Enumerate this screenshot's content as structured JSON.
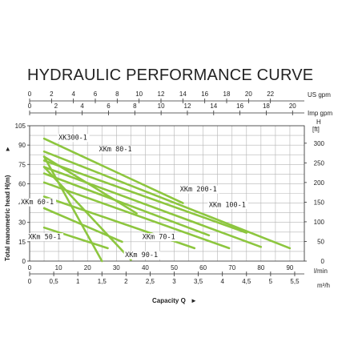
{
  "chart_data": {
    "type": "line",
    "title": "HYDRAULIC PERFORMANCE CURVE",
    "xlabel": "Capacity Q",
    "xlabel_arrow": "►",
    "ylabel": "Total manometric head H(m)",
    "ylabel_arrow": "►",
    "units": {
      "lpm": "l/min",
      "m3h": "m³/h",
      "usgpm": "US gpm",
      "impgpm": "Imp gpm",
      "ft_h": "H",
      "ft": "[ft]"
    },
    "x_lpm": {
      "range": [
        0,
        95
      ],
      "ticks": [
        "0",
        "10",
        "20",
        "30",
        "40",
        "50",
        "60",
        "70",
        "80",
        "90"
      ]
    },
    "x_m3h": {
      "ticks": [
        "0",
        "0,5",
        "1",
        "1,5",
        "2",
        "2,5",
        "3",
        "3,5",
        "4",
        "4,5",
        "5",
        "5,5"
      ]
    },
    "x_usgpm": {
      "ticks": [
        "0",
        "2",
        "4",
        "6",
        "8",
        "10",
        "12",
        "14",
        "16",
        "18",
        "20",
        "22"
      ]
    },
    "x_impgpm": {
      "ticks": [
        "0",
        "2",
        "4",
        "6",
        "8",
        "10",
        "12",
        "14",
        "16",
        "18",
        "20"
      ]
    },
    "y_m": {
      "range": [
        0,
        105
      ],
      "ticks": [
        "0",
        "15",
        "30",
        "45",
        "60",
        "75",
        "90",
        "105"
      ]
    },
    "y_ft": {
      "ticks": [
        "0",
        "50",
        "100",
        "150",
        "200",
        "250",
        "300"
      ]
    },
    "grid": true,
    "curve_color": "#8dc63f",
    "series": [
      {
        "name": "XKm 50-1",
        "x": [
          5,
          27
        ],
        "y": [
          26,
          10
        ]
      },
      {
        "name": "XKm 60-1",
        "x": [
          5,
          32
        ],
        "y": [
          41,
          15
        ]
      },
      {
        "name": "XKm 70-1",
        "x": [
          5,
          57
        ],
        "y": [
          50,
          10
        ]
      },
      {
        "name": "XKm 80-1",
        "x": [
          5,
          75
        ],
        "y": [
          78,
          22
        ]
      },
      {
        "name": "XKm 90-1",
        "x": [
          5,
          35
        ],
        "y": [
          73,
          1
        ]
      },
      {
        "name": "XKm 100-1",
        "x": [
          5,
          80
        ],
        "y": [
          73,
          11
        ]
      },
      {
        "name": "XKm 200-1",
        "x": [
          5,
          90
        ],
        "y": [
          85,
          10
        ]
      },
      {
        "name": "XKm300-1",
        "x": [
          5,
          53
        ],
        "y": [
          95,
          45
        ]
      },
      {
        "name": "",
        "x": [
          5,
          62
        ],
        "y": [
          68,
          20
        ]
      },
      {
        "name": "",
        "x": [
          5,
          69
        ],
        "y": [
          61,
          10
        ]
      },
      {
        "name": "",
        "x": [
          5,
          37
        ],
        "y": [
          81,
          37
        ]
      },
      {
        "name": "",
        "x": [
          5,
          25
        ],
        "y": [
          81,
          0
        ]
      }
    ],
    "curve_labels": [
      {
        "text": "XK300-1",
        "x": 10,
        "y": 94
      },
      {
        "text": "XKm 80-1",
        "x": 24,
        "y": 85
      },
      {
        "text": "XKm 200-1",
        "x": 52,
        "y": 54
      },
      {
        "text": "XKm 100-1",
        "x": 62,
        "y": 42
      },
      {
        "text": "XKm 60-1",
        "x": -3,
        "y": 44
      },
      {
        "text": "XKm 70-1",
        "x": 39,
        "y": 17
      },
      {
        "text": "XKm 50-1",
        "x": -0.5,
        "y": 17
      },
      {
        "text": "XKm 90-1",
        "x": 33,
        "y": 3
      }
    ]
  }
}
